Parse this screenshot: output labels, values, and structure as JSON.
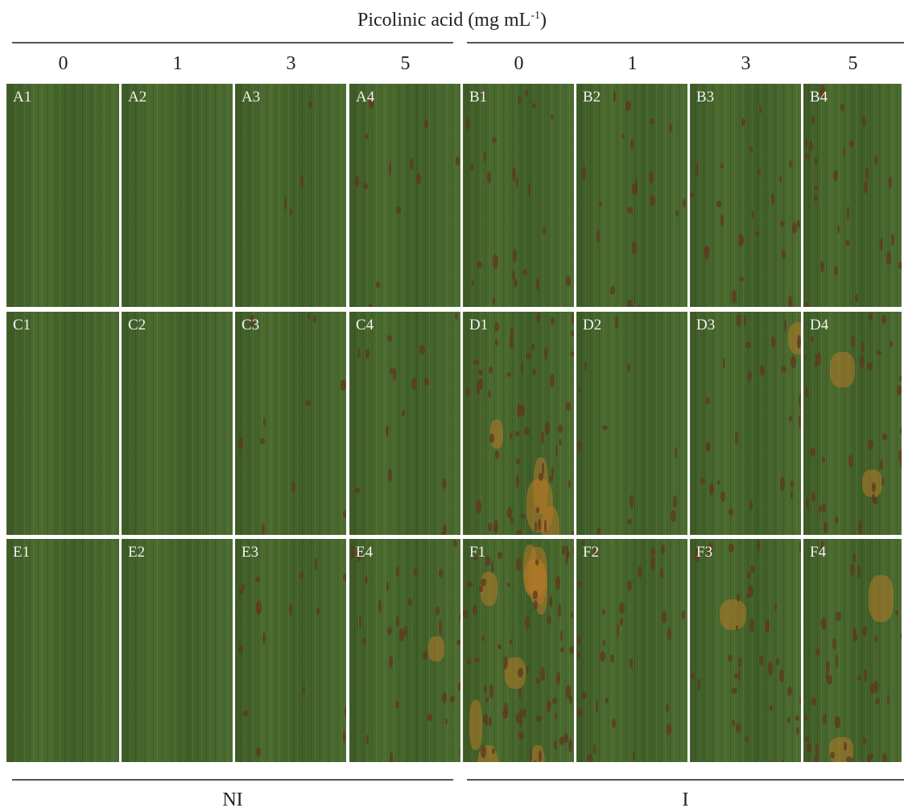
{
  "header": {
    "title": {
      "main": "Picolinic acid (mg mL",
      "superscript": "-1",
      "close": ")"
    },
    "columns": [
      "0",
      "1",
      "3",
      "5",
      "0",
      "1",
      "3",
      "5"
    ]
  },
  "panels": [
    [
      "A1",
      "A2",
      "A3",
      "A4",
      "B1",
      "B2",
      "B3",
      "B4"
    ],
    [
      "C1",
      "C2",
      "C3",
      "C4",
      "D1",
      "D2",
      "D3",
      "D4"
    ],
    [
      "E1",
      "E2",
      "E3",
      "E4",
      "F1",
      "F2",
      "F3",
      "F4"
    ]
  ],
  "groups": [
    "NI",
    "I"
  ]
}
